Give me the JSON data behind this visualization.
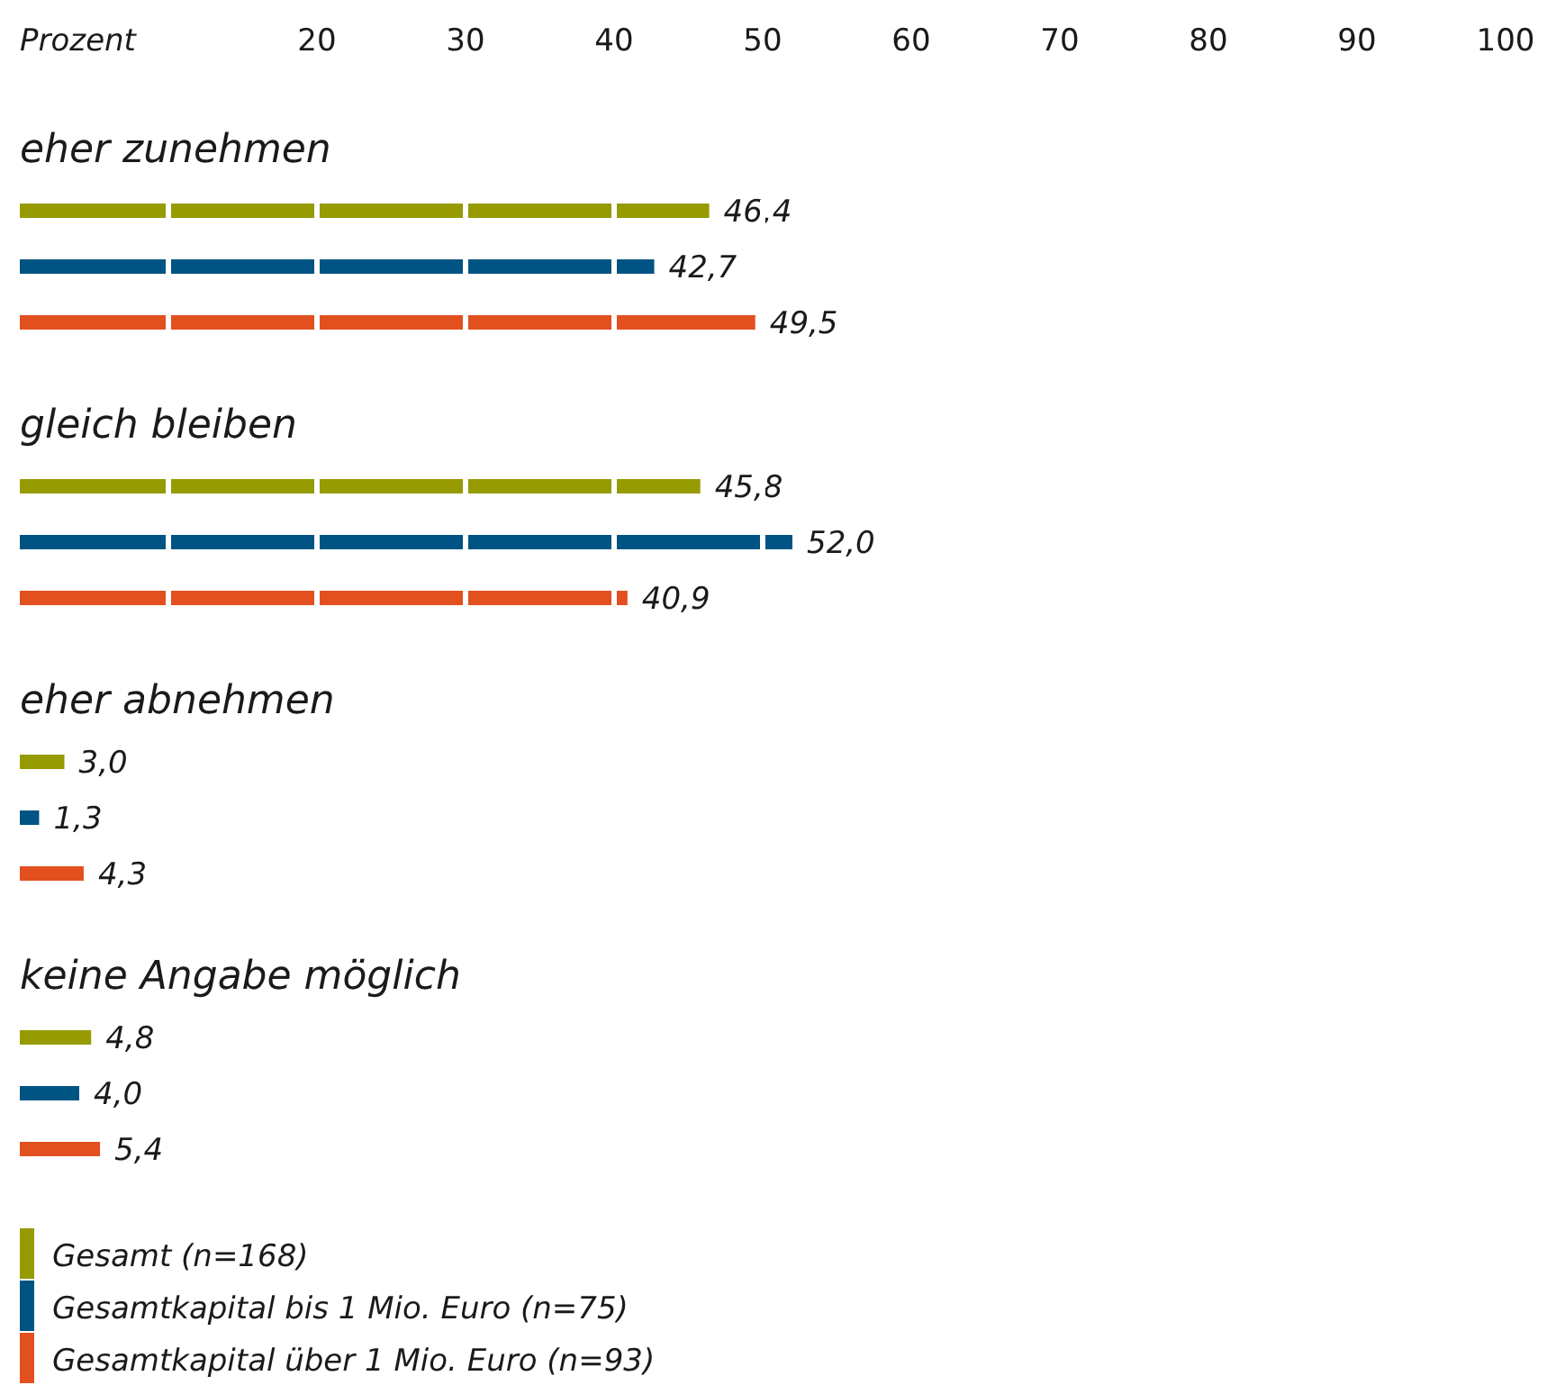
{
  "chart_data": {
    "type": "bar",
    "orientation": "horizontal",
    "xlabel": "Prozent",
    "categories": [
      "eher zunehmen",
      "gleich bleiben",
      "eher abnehmen",
      "keine Angabe möglich"
    ],
    "series": [
      {
        "name": "Gesamt (n=168)",
        "color": "#959b00",
        "values": [
          46.4,
          45.8,
          3.0,
          4.8
        ],
        "value_labels": [
          "46,4",
          "45,8",
          "3,0",
          "4,8"
        ]
      },
      {
        "name": "Gesamtkapital bis 1 Mio. Euro (n=75)",
        "color": "#005483",
        "values": [
          42.7,
          52.0,
          1.3,
          4.0
        ],
        "value_labels": [
          "42,7",
          "52,0",
          "1,3",
          "4,0"
        ]
      },
      {
        "name": "Gesamtkapital über 1 Mio. Euro (n=93)",
        "color": "#e2501f",
        "values": [
          49.5,
          40.9,
          4.3,
          5.4
        ],
        "value_labels": [
          "49,5",
          "40,9",
          "4,3",
          "5,4"
        ]
      }
    ],
    "xlim": [
      0,
      100
    ],
    "xticks": [
      20,
      30,
      40,
      50,
      60,
      70,
      80,
      90,
      100
    ],
    "legend": "bottom left"
  }
}
